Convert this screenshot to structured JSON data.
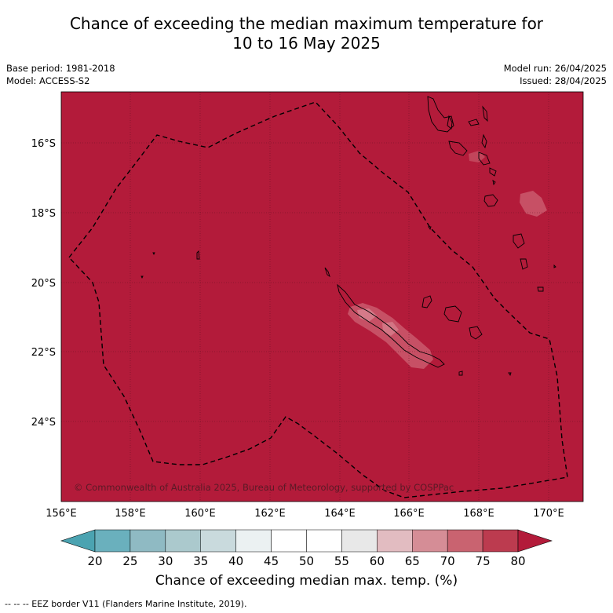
{
  "title": {
    "line1": "Chance of exceeding the median maximum temperature for",
    "line2": "10 to 16 May 2025"
  },
  "meta": {
    "base_period": "Base period: 1981-2018",
    "model": "Model: ACCESS-S2",
    "model_run": "Model run: 26/04/2025",
    "issued": "Issued: 28/04/2025"
  },
  "map": {
    "background_color": "#b31b3a",
    "copyright": "© Commonwealth of Australia 2025, Bureau of Meteorology, supported by COSPPac",
    "lon_labels": [
      "156°E",
      "158°E",
      "160°E",
      "162°E",
      "164°E",
      "166°E",
      "168°E",
      "170°E"
    ],
    "lat_labels": [
      "16°S",
      "18°S",
      "20°S",
      "22°S",
      "24°S"
    ]
  },
  "colorbar": {
    "title": "Chance of exceeding median max. temp. (%)",
    "tick_labels": [
      "20",
      "25",
      "30",
      "35",
      "40",
      "45",
      "50",
      "55",
      "60",
      "65",
      "70",
      "75",
      "80"
    ],
    "colors": [
      "#6ab0bd",
      "#8fbac3",
      "#abc9cd",
      "#c9dadd",
      "#ebf1f2",
      "#ffffff",
      "#ffffff",
      "#e8e8e8",
      "#e2bcc1",
      "#d58d96",
      "#c96370",
      "#bc3b4f"
    ],
    "under_color": "#4ba3b1",
    "over_color": "#b31b3a"
  },
  "footnote": "--  --  -- EEZ border V11 (Flanders Marine Institute, 2019)."
}
